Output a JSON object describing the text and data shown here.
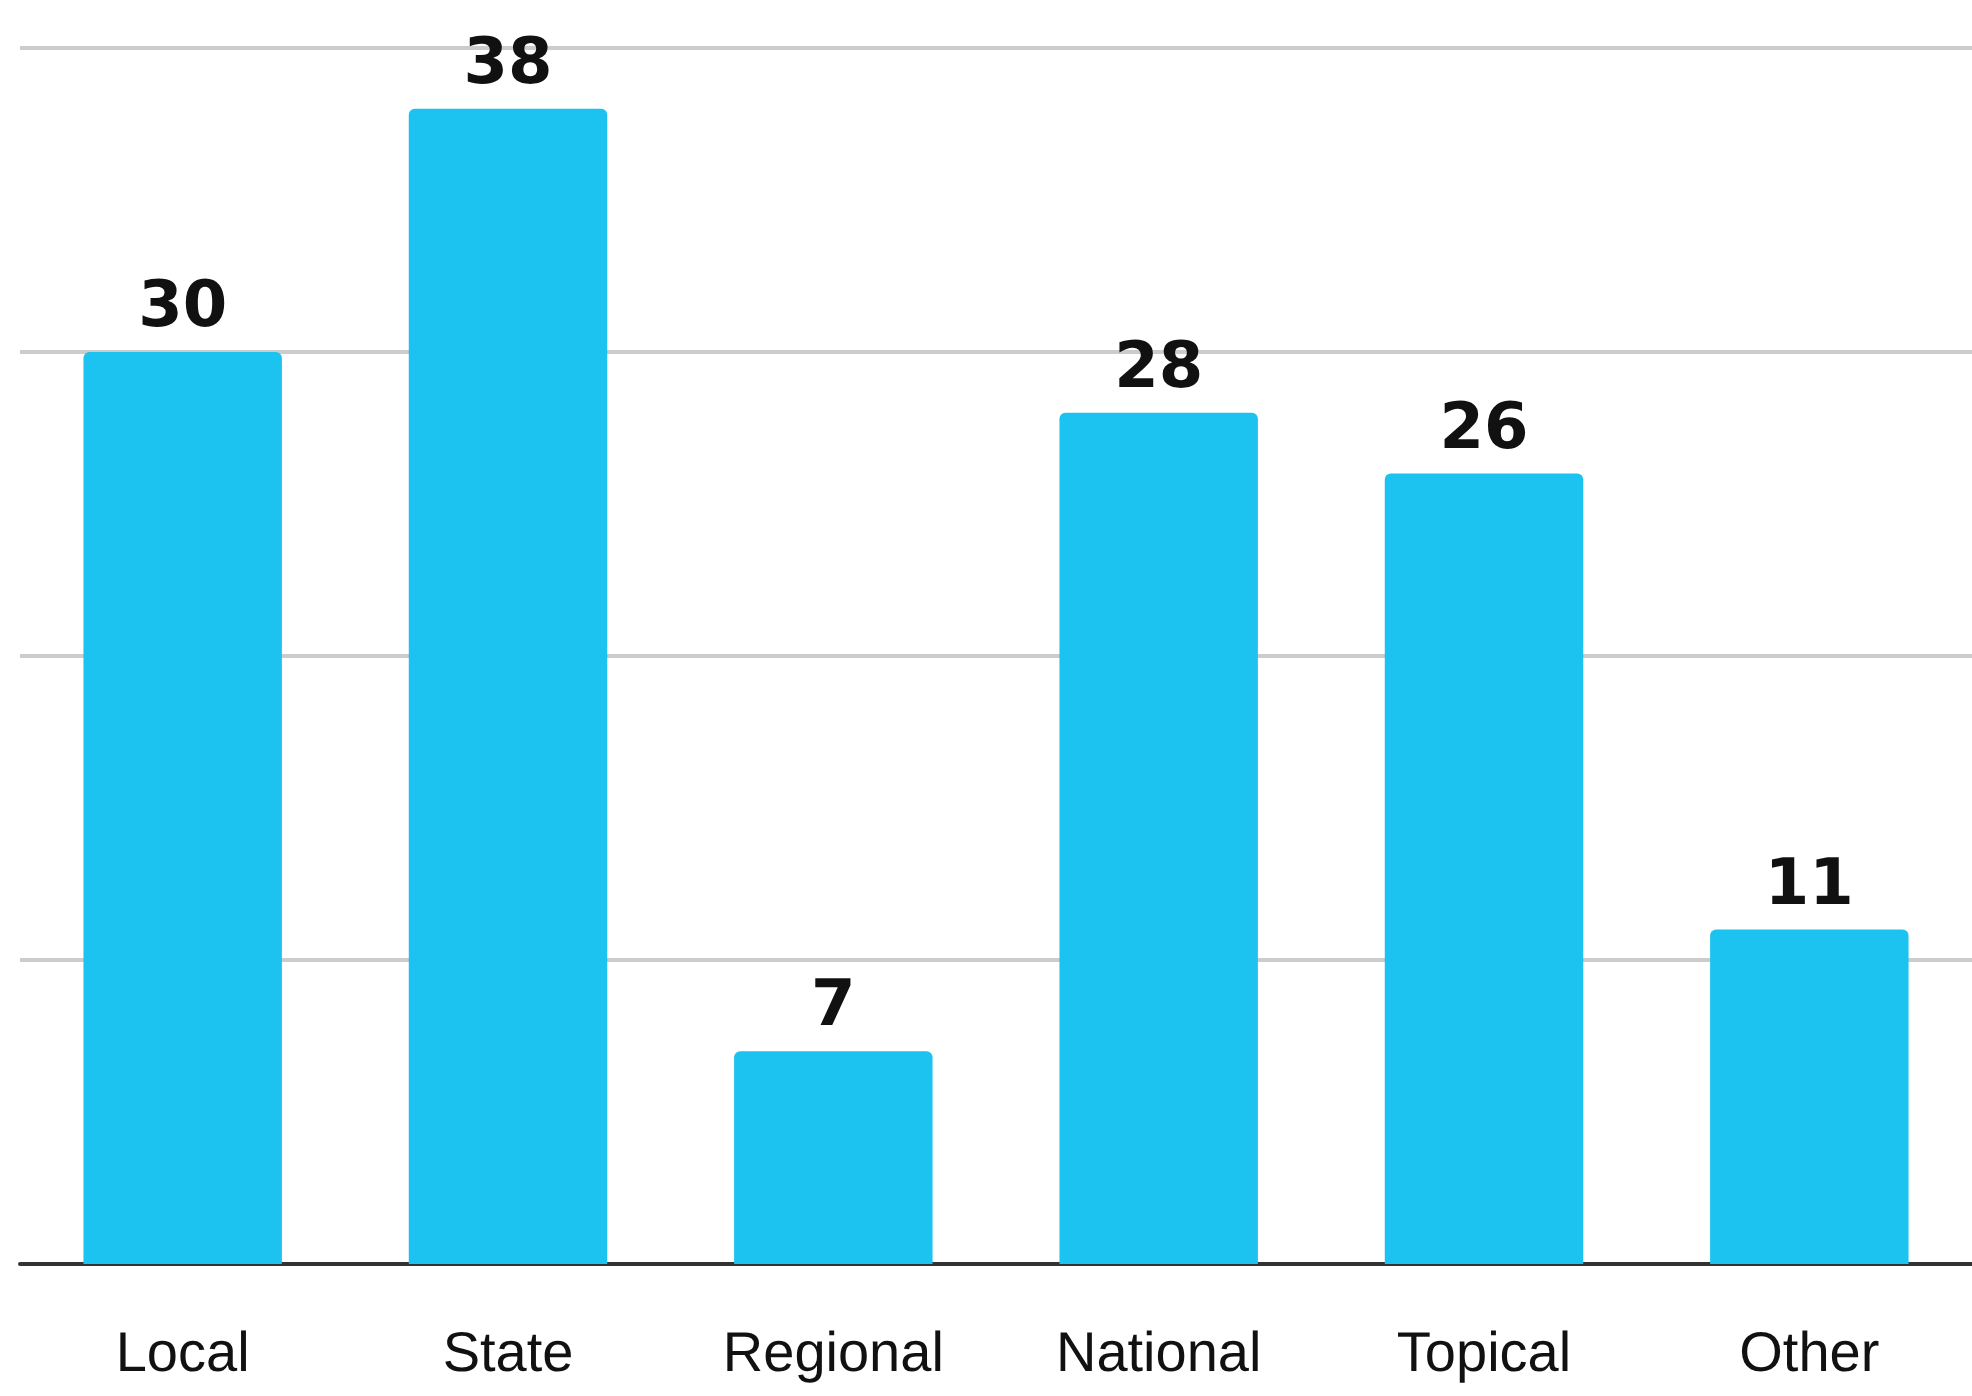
{
  "chart_data": {
    "type": "bar",
    "categories": [
      "Local",
      "State",
      "Regional",
      "National",
      "Topical",
      "Other"
    ],
    "values": [
      30,
      38,
      7,
      28,
      26,
      11
    ],
    "color": "#1dc3f0",
    "ylim": [
      0,
      40
    ],
    "yticks": [
      {
        "value": 0,
        "label": null
      },
      {
        "value": 10,
        "label": null
      },
      {
        "value": 20,
        "label": null
      },
      {
        "value": 30,
        "label": null
      },
      {
        "value": 40,
        "label": null
      }
    ],
    "grid": "y",
    "tick_labels": "x",
    "data_labels": true
  }
}
